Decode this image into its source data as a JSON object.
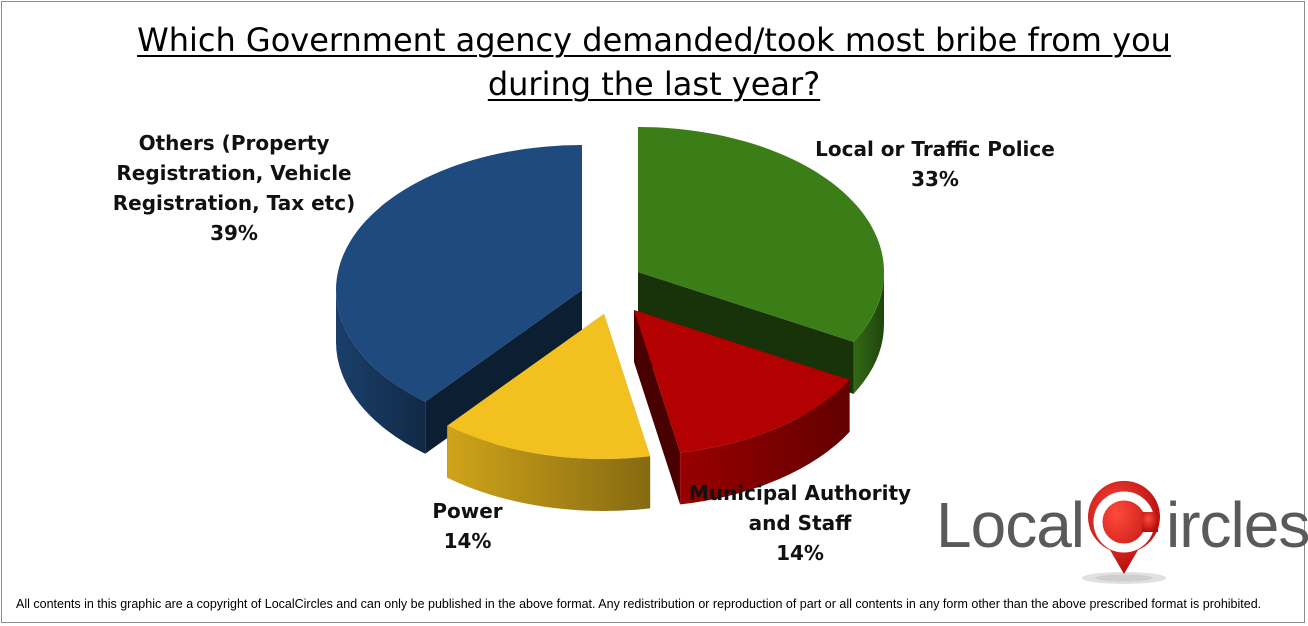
{
  "title_line1": "Which Government agency demanded/took most bribe from you",
  "title_line2": "during the last year?",
  "footer": "All contents in this graphic are a copyright of LocalCircles and can only be published in the above format. Any redistribution or reproduction of part or all contents in any form other than the above prescribed format is prohibited.",
  "logo": {
    "text_left": "Local",
    "text_right": "ircles"
  },
  "chart_data": {
    "type": "pie",
    "title": "Which Government agency demanded/took most bribe from you during the last year?",
    "slices": [
      {
        "label_lines": [
          "Local or Traffic Police"
        ],
        "name": "Local or Traffic Police",
        "value": 33,
        "value_label": "33%",
        "color": "#3b7d17"
      },
      {
        "label_lines": [
          "Municipal Authority",
          "and Staff"
        ],
        "name": "Municipal Authority and Staff",
        "value": 14,
        "value_label": "14%",
        "color": "#b30000"
      },
      {
        "label_lines": [
          "Power"
        ],
        "name": "Power",
        "value": 14,
        "value_label": "14%",
        "color": "#f3c11f"
      },
      {
        "label_lines": [
          "Others (Property",
          "Registration, Vehicle",
          "Registration, Tax etc)"
        ],
        "name": "Others (Property Registration, Vehicle Registration, Tax etc)",
        "value": 39,
        "value_label": "39%",
        "color": "#1f4a7e"
      }
    ],
    "style": "3d-exploded"
  }
}
